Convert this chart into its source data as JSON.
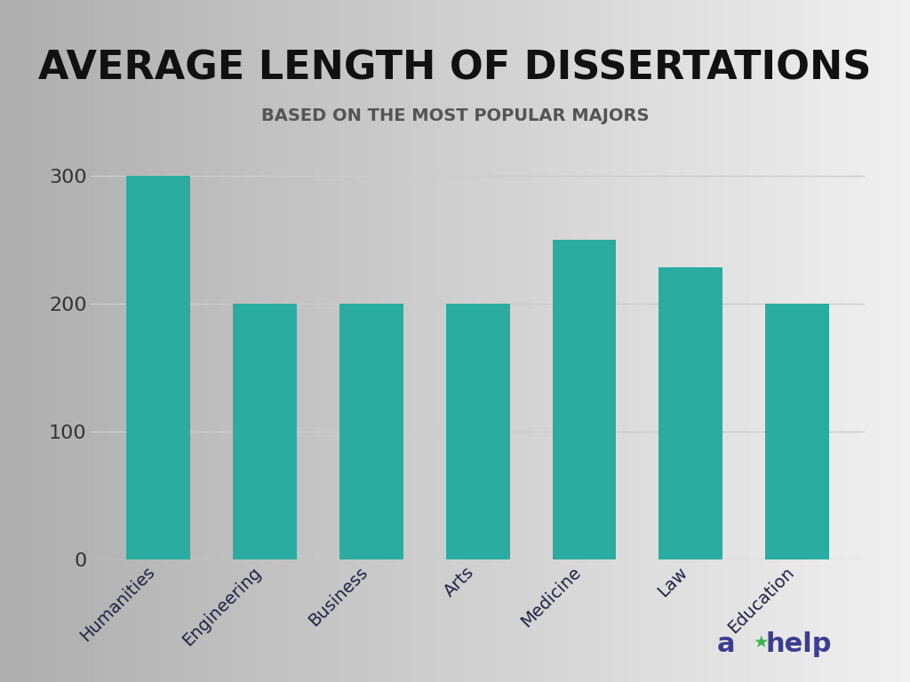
{
  "title": "AVERAGE LENGTH OF DISSERTATIONS",
  "subtitle": "BASED ON THE MOST POPULAR MAJORS",
  "categories": [
    "Humanities",
    "Engineering",
    "Business",
    "Arts",
    "Medicine",
    "Law",
    "Education"
  ],
  "values": [
    300,
    200,
    200,
    200,
    250,
    228,
    200
  ],
  "bar_color": "#2aaca0",
  "yticks": [
    0,
    100,
    200,
    300
  ],
  "ylim": [
    0,
    320
  ],
  "title_fontsize": 32,
  "subtitle_fontsize": 14,
  "tick_label_fontsize": 16,
  "xtick_label_fontsize": 14,
  "grid_color": "#cccccc",
  "logo_star_color": "#3ab54a",
  "logo_help_color": "#3d3d8f"
}
